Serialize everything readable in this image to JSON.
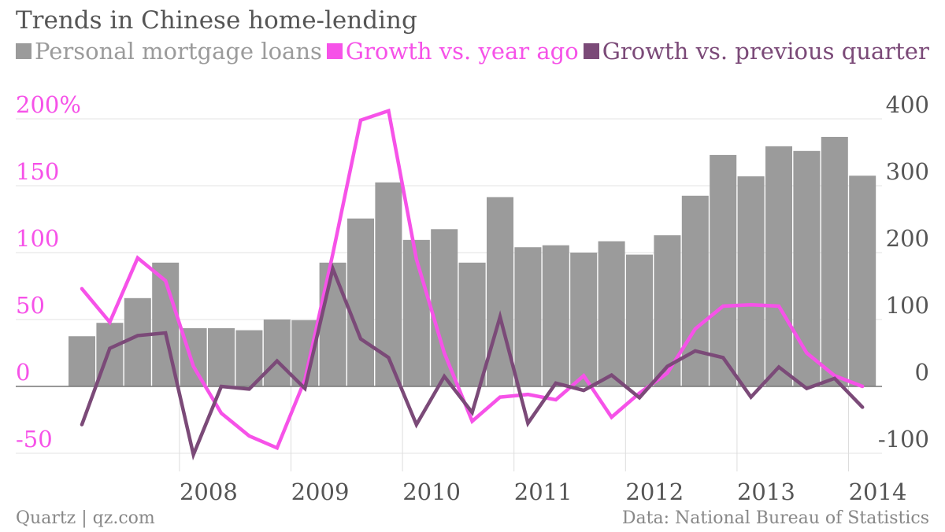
{
  "chart_data": {
    "type": "bar+line",
    "title": "Trends in Chinese home-lending",
    "legend": [
      {
        "name": "Personal mortgage loans",
        "color": "#9b9b9b"
      },
      {
        "name": "Growth vs. year ago",
        "color": "#f652e8"
      },
      {
        "name": "Growth vs. previous quarter",
        "color": "#7b4a78"
      }
    ],
    "left_axis": {
      "ticks": [
        "200%",
        "150",
        "100",
        "50",
        "0",
        "-50"
      ],
      "values": [
        200,
        150,
        100,
        50,
        0,
        -50
      ],
      "ylim": [
        -50,
        200
      ],
      "color": "#f652e8"
    },
    "right_axis": {
      "ticks": [
        "400",
        "300",
        "200",
        "100",
        "0",
        "-100"
      ],
      "values": [
        400,
        300,
        200,
        100,
        0,
        -100
      ],
      "ylim": [
        -100,
        400
      ]
    },
    "x_axis": {
      "ticks": [
        "2008",
        "2009",
        "2010",
        "2011",
        "2012",
        "2013",
        "2014"
      ],
      "tick_quarter_index": [
        4,
        8,
        12,
        16,
        20,
        24,
        28
      ]
    },
    "quarters": [
      "2007 Q1",
      "2007 Q2",
      "2007 Q3",
      "2007 Q4",
      "2008 Q1",
      "2008 Q2",
      "2008 Q3",
      "2008 Q4",
      "2009 Q1",
      "2009 Q2",
      "2009 Q3",
      "2009 Q4",
      "2010 Q1",
      "2010 Q2",
      "2010 Q3",
      "2010 Q4",
      "2011 Q1",
      "2011 Q2",
      "2011 Q3",
      "2011 Q4",
      "2012 Q1",
      "2012 Q2",
      "2012 Q3",
      "2012 Q4",
      "2013 Q1",
      "2013 Q2",
      "2013 Q3",
      "2013 Q4",
      "2014 Q1"
    ],
    "series": [
      {
        "name": "Personal mortgage loans",
        "type": "bar",
        "axis": "right",
        "values": [
          75,
          95,
          132,
          185,
          87,
          87,
          84,
          100,
          99,
          185,
          251,
          305,
          219,
          235,
          185,
          283,
          208,
          211,
          200,
          217,
          197,
          226,
          285,
          346,
          314,
          359,
          352,
          373,
          315
        ]
      },
      {
        "name": "Growth vs. year ago",
        "type": "line",
        "axis": "left",
        "values": [
          73,
          48,
          96,
          79,
          15,
          -20,
          -37,
          -46,
          5,
          99,
          199,
          206,
          95,
          25,
          -26,
          -8,
          -6,
          -10,
          8,
          -23,
          -5,
          10,
          43,
          60,
          61,
          60,
          25,
          8,
          0
        ]
      },
      {
        "name": "Growth vs. previous quarter",
        "type": "line",
        "axis": "right",
        "values": [
          -57,
          57,
          76,
          80,
          -102,
          0,
          -4,
          38,
          -3,
          176,
          71,
          43,
          -57,
          15,
          -39,
          104,
          -55,
          5,
          -6,
          17,
          -17,
          30,
          53,
          43,
          -16,
          29,
          -3,
          12,
          -31
        ]
      }
    ]
  },
  "footer": {
    "source_left": "Quartz | qz.com",
    "source_right": "Data: National Bureau of Statistics"
  }
}
